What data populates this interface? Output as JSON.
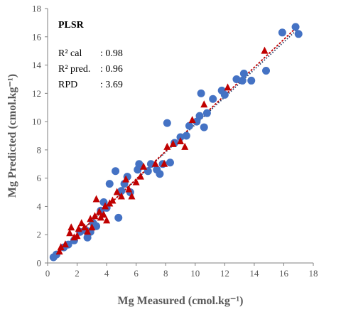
{
  "chart_data": {
    "type": "scatter",
    "title": "",
    "xlabel": "Mg Measured (cmol.kg⁻¹)",
    "ylabel": "Mg Predicted (cmol.kg⁻¹)",
    "xlim": [
      0,
      18
    ],
    "ylim": [
      0,
      18
    ],
    "xticks": [
      "0",
      "2",
      "4",
      "6",
      "8",
      "10",
      "12",
      "14",
      "16",
      "18"
    ],
    "yticks": [
      "0",
      "2",
      "4",
      "6",
      "8",
      "10",
      "12",
      "14",
      "16",
      "18"
    ],
    "grid": false,
    "annotations": {
      "method": "PLSR",
      "lines": [
        {
          "label": "R² cal",
          "value": ": 0.98"
        },
        {
          "label": "R² pred.",
          "value": ": 0.96"
        },
        {
          "label": "RPD",
          "value": ": 3.69"
        }
      ]
    },
    "series": [
      {
        "marker": "circle",
        "color": "#4472C4",
        "trendline_color": "#1F3864",
        "trendline": [
          [
            0.3,
            0.35
          ],
          [
            17.0,
            16.6
          ]
        ],
        "points": [
          [
            0.4,
            0.4
          ],
          [
            0.6,
            0.6
          ],
          [
            1.1,
            1.1
          ],
          [
            1.4,
            1.3
          ],
          [
            1.8,
            1.6
          ],
          [
            2.2,
            2.2
          ],
          [
            2.6,
            2.3
          ],
          [
            2.7,
            1.8
          ],
          [
            2.9,
            2.2
          ],
          [
            3.1,
            2.8
          ],
          [
            3.3,
            2.6
          ],
          [
            3.6,
            3.7
          ],
          [
            3.8,
            4.3
          ],
          [
            4.0,
            3.9
          ],
          [
            4.2,
            5.6
          ],
          [
            4.6,
            6.5
          ],
          [
            4.8,
            3.2
          ],
          [
            5.0,
            5.1
          ],
          [
            5.2,
            5.6
          ],
          [
            5.4,
            6.1
          ],
          [
            5.6,
            5.0
          ],
          [
            6.1,
            6.6
          ],
          [
            6.2,
            7.0
          ],
          [
            6.8,
            6.5
          ],
          [
            7.0,
            7.0
          ],
          [
            7.4,
            6.6
          ],
          [
            7.6,
            6.3
          ],
          [
            7.8,
            7.0
          ],
          [
            8.1,
            9.9
          ],
          [
            8.3,
            7.1
          ],
          [
            8.6,
            8.5
          ],
          [
            9.0,
            8.9
          ],
          [
            9.4,
            9.0
          ],
          [
            9.6,
            9.7
          ],
          [
            10.1,
            10.0
          ],
          [
            10.3,
            10.4
          ],
          [
            10.4,
            12.0
          ],
          [
            10.6,
            9.6
          ],
          [
            10.8,
            10.6
          ],
          [
            11.2,
            11.6
          ],
          [
            11.8,
            12.2
          ],
          [
            12.0,
            11.9
          ],
          [
            12.8,
            13.0
          ],
          [
            13.2,
            12.9
          ],
          [
            13.3,
            13.4
          ],
          [
            13.8,
            12.9
          ],
          [
            14.8,
            13.6
          ],
          [
            15.9,
            16.3
          ],
          [
            16.8,
            16.7
          ],
          [
            17.0,
            16.2
          ]
        ]
      },
      {
        "marker": "triangle",
        "color": "#C00000",
        "trendline_color": "#C00000",
        "trendline": [
          [
            0.3,
            0.3
          ],
          [
            17.0,
            16.8
          ]
        ],
        "points": [
          [
            0.8,
            0.8
          ],
          [
            0.9,
            1.1
          ],
          [
            1.2,
            1.3
          ],
          [
            1.5,
            2.1
          ],
          [
            1.6,
            2.5
          ],
          [
            1.8,
            1.8
          ],
          [
            2.0,
            1.9
          ],
          [
            2.1,
            2.4
          ],
          [
            2.3,
            2.8
          ],
          [
            2.5,
            2.5
          ],
          [
            2.7,
            2.2
          ],
          [
            2.9,
            3.1
          ],
          [
            3.0,
            2.5
          ],
          [
            3.2,
            3.3
          ],
          [
            3.3,
            4.5
          ],
          [
            3.5,
            3.6
          ],
          [
            3.6,
            3.2
          ],
          [
            3.8,
            3.4
          ],
          [
            3.9,
            4.0
          ],
          [
            4.0,
            3.0
          ],
          [
            4.2,
            4.2
          ],
          [
            4.4,
            4.4
          ],
          [
            4.7,
            5.0
          ],
          [
            5.0,
            4.7
          ],
          [
            5.3,
            5.9
          ],
          [
            5.5,
            5.2
          ],
          [
            5.7,
            4.7
          ],
          [
            6.0,
            5.7
          ],
          [
            6.3,
            6.1
          ],
          [
            6.5,
            6.8
          ],
          [
            7.3,
            7.0
          ],
          [
            7.9,
            7.0
          ],
          [
            8.1,
            8.2
          ],
          [
            8.5,
            8.4
          ],
          [
            9.0,
            8.6
          ],
          [
            9.3,
            8.2
          ],
          [
            9.8,
            10.1
          ],
          [
            10.6,
            11.2
          ],
          [
            12.2,
            12.4
          ],
          [
            14.7,
            15.0
          ]
        ]
      }
    ]
  }
}
